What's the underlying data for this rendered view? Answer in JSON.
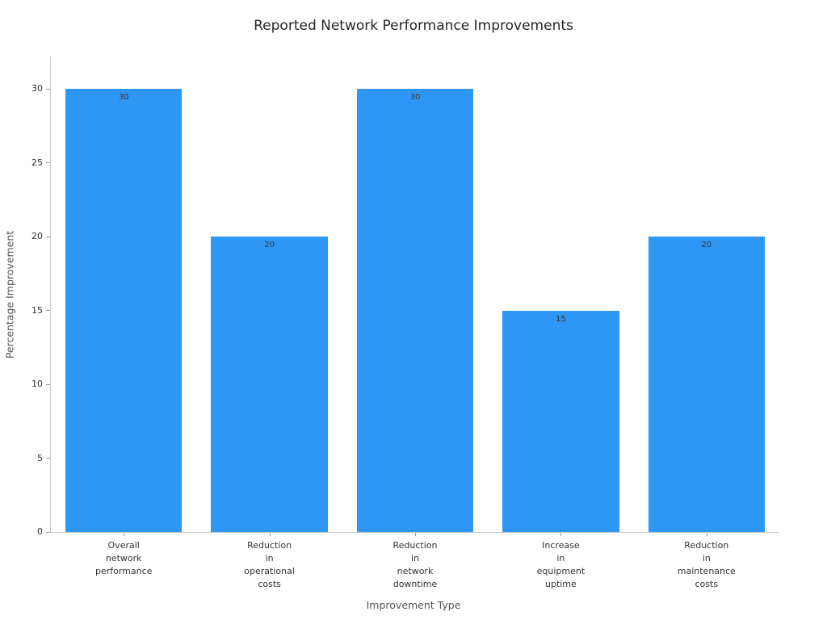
{
  "chart_data": {
    "type": "bar",
    "title": "Reported Network Performance Improvements",
    "xlabel": "Improvement Type",
    "ylabel": "Percentage Improvement",
    "categories": [
      "Overall\nnetwork\nperformance",
      "Reduction\nin\noperational\ncosts",
      "Reduction\nin\nnetwork\ndowntime",
      "Increase\nin\nequipment\nuptime",
      "Reduction\nin\nmaintenance\ncosts"
    ],
    "values": [
      30,
      20,
      30,
      15,
      20
    ],
    "value_labels": [
      "30",
      "20",
      "30",
      "15",
      "20"
    ],
    "ylim": [
      0,
      30
    ],
    "yticks": [
      0,
      5,
      10,
      15,
      20,
      25,
      30
    ],
    "bar_color": "#2e96f5",
    "grid": false,
    "legend": "none"
  }
}
